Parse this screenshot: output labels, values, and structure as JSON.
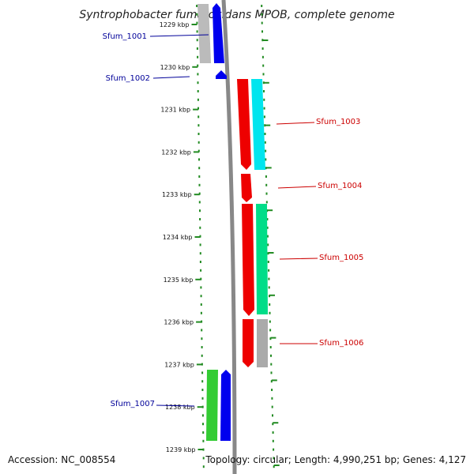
{
  "title": "Syntrophobacter fumaroxidans MPOB, complete genome",
  "accession": "Accession: NC_008554",
  "topology": "Topology: circular; Length: 4,990,251 bp; Genes: 4,127",
  "kbp_ticks": [
    "1229 kbp",
    "1230 kbp",
    "1231 kbp",
    "1232 kbp",
    "1233 kbp",
    "1234 kbp",
    "1235 kbp",
    "1236 kbp",
    "1237 kbp",
    "1238 kbp",
    "1239 kbp"
  ],
  "genes": [
    {
      "name": "Sfum_1001",
      "color": "#000099",
      "strand": "minus"
    },
    {
      "name": "Sfum_1002",
      "color": "#000099",
      "strand": "minus"
    },
    {
      "name": "Sfum_1003",
      "color": "#cc0000",
      "strand": "plus"
    },
    {
      "name": "Sfum_1004",
      "color": "#cc0000",
      "strand": "plus"
    },
    {
      "name": "Sfum_1005",
      "color": "#cc0000",
      "strand": "plus"
    },
    {
      "name": "Sfum_1006",
      "color": "#cc0000",
      "strand": "plus"
    },
    {
      "name": "Sfum_1007",
      "color": "#000099",
      "strand": "minus"
    }
  ],
  "colors": {
    "backbone": "#888888",
    "tick": "#228b22",
    "minus_gene": "#0000ee",
    "plus_gene": "#ee0000",
    "cds_cyan": "#00e5ee",
    "cds_teal": "#00dd88",
    "cds_gray": "#aaaaaa",
    "cds_green": "#33cc33"
  }
}
